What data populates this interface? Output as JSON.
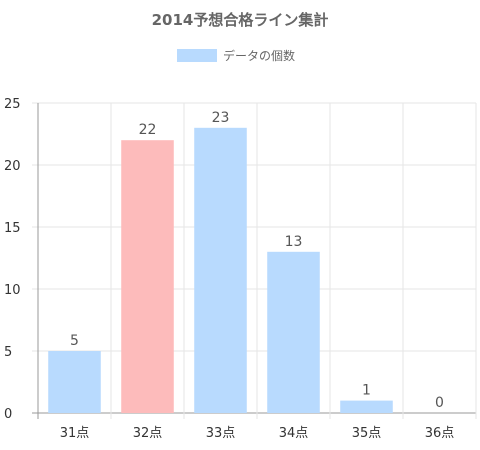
{
  "chart_data": {
    "type": "bar",
    "title": "2014予想合格ライン集計",
    "legend": {
      "label": "データの個数",
      "position": "top"
    },
    "categories": [
      "31点",
      "32点",
      "33点",
      "34点",
      "35点",
      "36点"
    ],
    "series": [
      {
        "name": "データの個数",
        "values": [
          5,
          22,
          23,
          13,
          1,
          0
        ]
      }
    ],
    "highlight_index": 1,
    "colors": {
      "bar": "#b8dafe",
      "highlight": "#fdbbbb",
      "grid": "#e6e6e6",
      "axis": "#999999"
    },
    "ylim": [
      0,
      25
    ],
    "yticks": [
      0,
      5,
      10,
      15,
      20,
      25
    ],
    "grid": true
  }
}
